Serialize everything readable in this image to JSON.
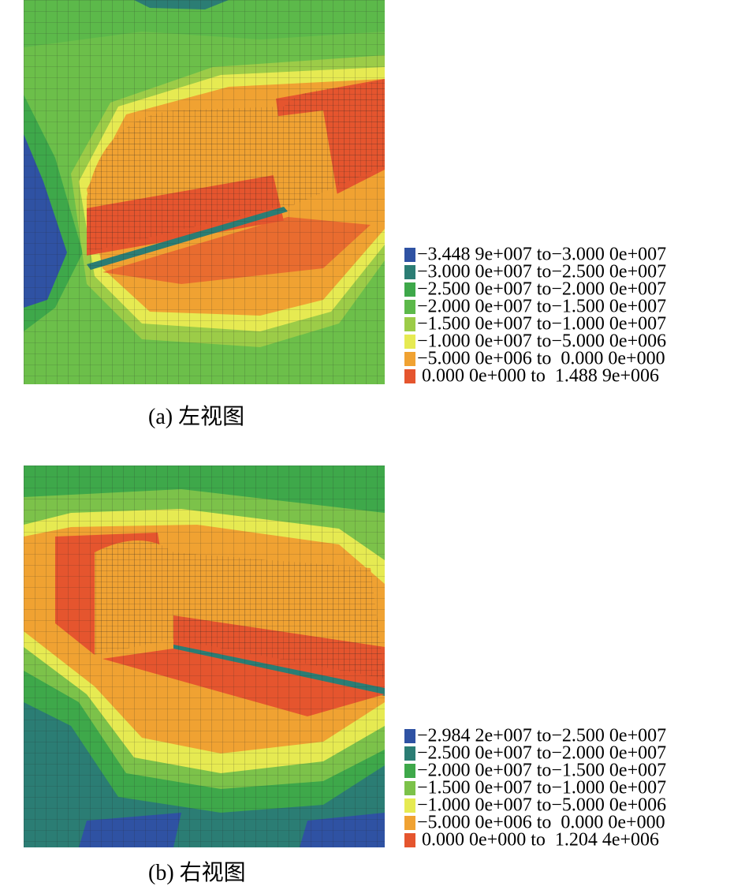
{
  "panels": [
    {
      "caption": "(a) 左视图",
      "legend": [
        {
          "label": "−3.448 9e+007 to−3.000 0e+007",
          "color": "#2f52a3"
        },
        {
          "label": "−3.000 0e+007 to−2.500 0e+007",
          "color": "#2b7d74"
        },
        {
          "label": "−2.500 0e+007 to−2.000 0e+007",
          "color": "#3ea84a"
        },
        {
          "label": "−2.000 0e+007 to−1.500 0e+007",
          "color": "#5cb94a"
        },
        {
          "label": "−1.500 0e+007 to−1.000 0e+007",
          "color": "#9ccc48"
        },
        {
          "label": "−1.000 0e+007 to−5.000 0e+006",
          "color": "#e6ea52"
        },
        {
          "label": "−5.000 0e+006 to  0.000 0e+000",
          "color": "#f0a232"
        },
        {
          "label": " 0.000 0e+000 to  1.488 9e+006",
          "color": "#e5552e"
        }
      ]
    },
    {
      "caption": "(b) 右视图",
      "legend": [
        {
          "label": "−2.984 2e+007 to−2.500 0e+007",
          "color": "#2f52a3"
        },
        {
          "label": "−2.500 0e+007 to−2.000 0e+007",
          "color": "#2b7d74"
        },
        {
          "label": "−2.000 0e+007 to−1.500 0e+007",
          "color": "#3ea84a"
        },
        {
          "label": "−1.500 0e+007 to−1.000 0e+007",
          "color": "#7cc24a"
        },
        {
          "label": "−1.000 0e+007 to−5.000 0e+006",
          "color": "#e6ea52"
        },
        {
          "label": "−5.000 0e+006 to  0.000 0e+000",
          "color": "#f0a232"
        },
        {
          "label": " 0.000 0e+000 to  1.204 4e+006",
          "color": "#e5552e"
        }
      ]
    }
  ]
}
